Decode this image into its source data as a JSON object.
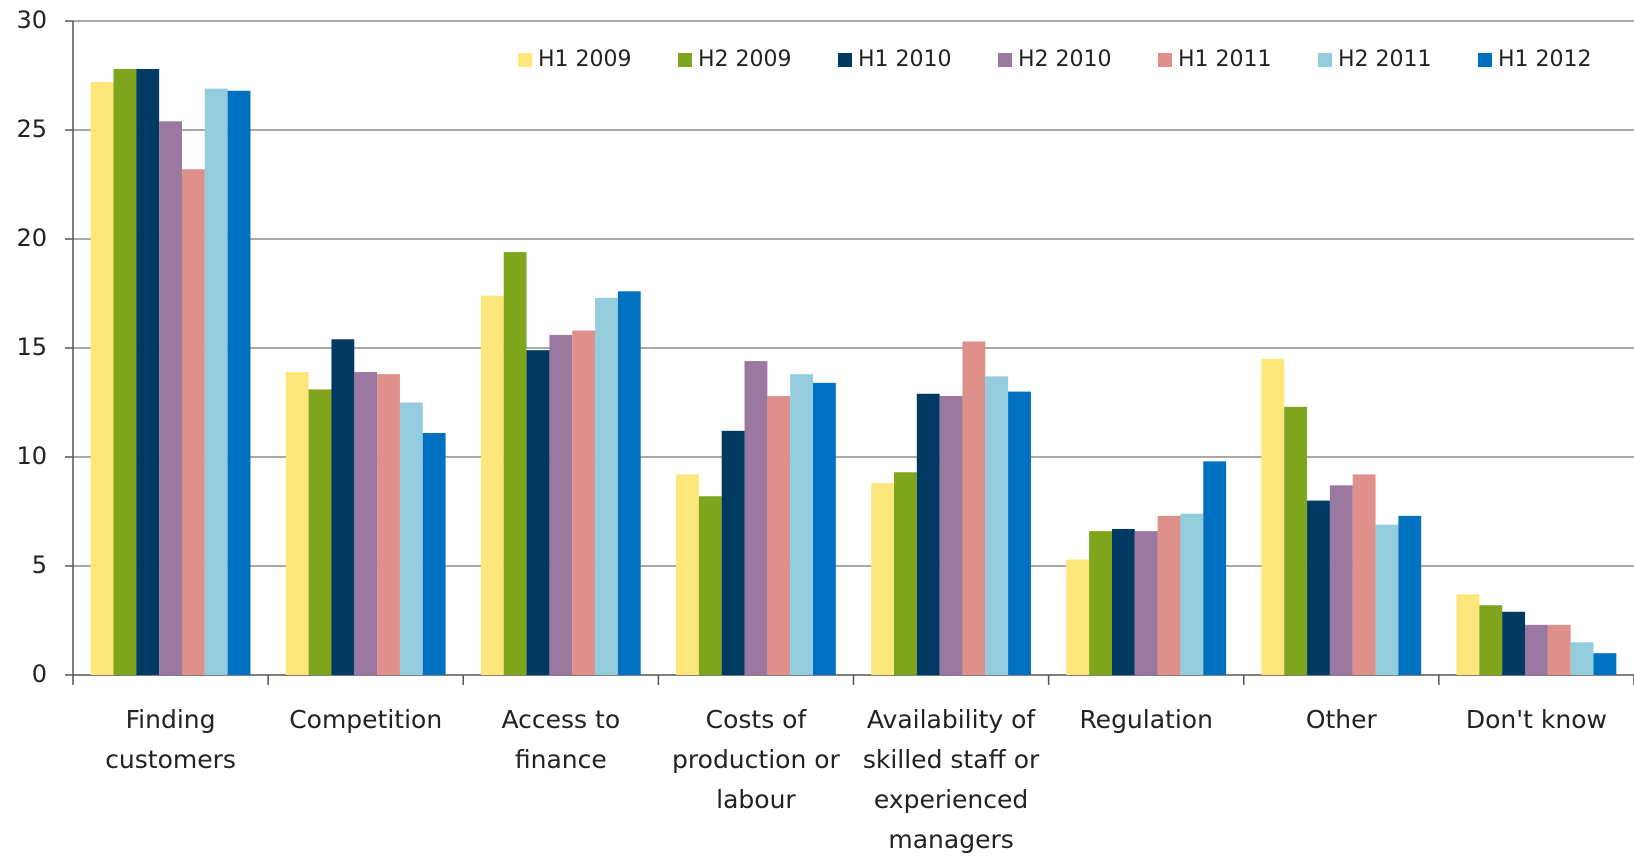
{
  "chart_data": {
    "type": "bar",
    "categories": [
      "Finding customers",
      "Competition",
      "Access to finance",
      "Costs of production or labour",
      "Availability of skilled staff or experienced managers",
      "Regulation",
      "Other",
      "Don't know"
    ],
    "series": [
      {
        "name": "H1 2009",
        "color": "#fde67a",
        "values": [
          27.2,
          13.9,
          17.4,
          9.2,
          8.8,
          5.3,
          14.5,
          3.7
        ]
      },
      {
        "name": "H2 2009",
        "color": "#7fa51c",
        "values": [
          27.8,
          13.1,
          19.4,
          8.2,
          9.3,
          6.6,
          12.3,
          3.2
        ]
      },
      {
        "name": "H1 2010",
        "color": "#003a63",
        "values": [
          27.8,
          15.4,
          14.9,
          11.2,
          12.9,
          6.7,
          8.0,
          2.9
        ]
      },
      {
        "name": "H2 2010",
        "color": "#9b789f",
        "values": [
          25.4,
          13.9,
          15.6,
          14.4,
          12.8,
          6.6,
          8.7,
          2.3
        ]
      },
      {
        "name": "H1 2011",
        "color": "#e0908a",
        "values": [
          23.2,
          13.8,
          15.8,
          12.8,
          15.3,
          7.3,
          9.2,
          2.3
        ]
      },
      {
        "name": "H2 2011",
        "color": "#93cddd",
        "values": [
          26.9,
          12.5,
          17.3,
          13.8,
          13.7,
          7.4,
          6.9,
          1.5
        ]
      },
      {
        "name": "H1 2012",
        "color": "#0070c0",
        "values": [
          26.8,
          11.1,
          17.6,
          13.4,
          13.0,
          9.8,
          7.3,
          1.0
        ]
      }
    ],
    "ylim": [
      0,
      30
    ],
    "yticks": [
      0,
      5,
      10,
      15,
      20,
      25,
      30
    ],
    "grid": true,
    "legend": "top-right"
  }
}
